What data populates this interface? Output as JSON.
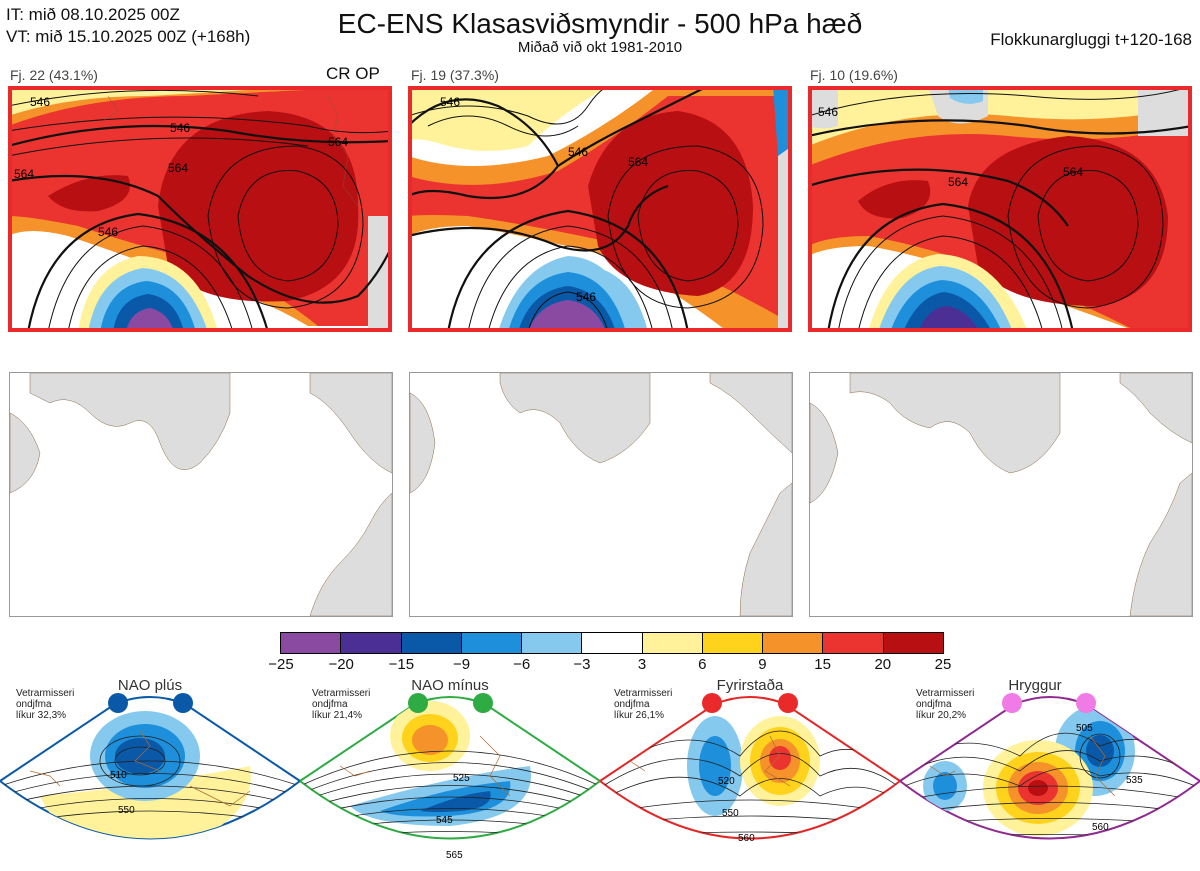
{
  "header": {
    "it_line": "IT: mið 08.10.2025 00Z",
    "vt_line": "VT: mið 15.10.2025 00Z  (+168h)",
    "title": "EC-ENS Klasasviðsmyndir - 500 hPa hæð",
    "subtitle": "Miðað við okt 1981-2010",
    "window": "Flokkunargluggi t+120-168"
  },
  "panels": [
    {
      "label": "Fj. 22 (43.1%)",
      "badge": "CR OP",
      "contours": [
        "546",
        "546",
        "564",
        "564",
        "564",
        "546"
      ]
    },
    {
      "label": "Fj. 19 (37.3%)",
      "badge": "",
      "contours": [
        "546",
        "564",
        "546",
        "546"
      ]
    },
    {
      "label": "Fj. 10 (19.6%)",
      "badge": "",
      "contours": [
        "546",
        "564",
        "564"
      ]
    }
  ],
  "colorbar": {
    "ticks": [
      "−25",
      "−20",
      "−15",
      "−9",
      "−6",
      "−3",
      "3",
      "6",
      "9",
      "15",
      "20",
      "25"
    ],
    "colors": [
      "#8b4aa2",
      "#4b2f95",
      "#0a58a8",
      "#1d8fdb",
      "#86c9ee",
      "#ffffff",
      "#fff29a",
      "#ffd21c",
      "#f5922a",
      "#eb3430",
      "#b80f12"
    ]
  },
  "regimes": [
    {
      "title": "NAO plús",
      "info": [
        "Vetrarmisseri",
        "ondjfma",
        "líkur 32,3%"
      ],
      "dot_color": "#0a58a8",
      "frame": "#0b5aa6",
      "contours": [
        "510",
        "550"
      ]
    },
    {
      "title": "NAO mínus",
      "info": [
        "Vetrarmisseri",
        "ondjfma",
        "líkur 21,4%"
      ],
      "dot_color": "#2eab43",
      "frame": "#2eab43",
      "contours": [
        "525",
        "545",
        "565"
      ]
    },
    {
      "title": "Fyrirstaða",
      "info": [
        "Vetrarmisseri",
        "ondjfma",
        "líkur 26,1%"
      ],
      "dot_color": "#ea2a2a",
      "frame": "#e32626",
      "contours": [
        "520",
        "550",
        "560"
      ]
    },
    {
      "title": "Hryggur",
      "info": [
        "Vetrarmisseri",
        "ondjfma",
        "líkur 20,2%"
      ],
      "dot_color": "#f07ae6",
      "frame": "#8e2a90",
      "contours": [
        "505",
        "535",
        "560"
      ]
    }
  ]
}
